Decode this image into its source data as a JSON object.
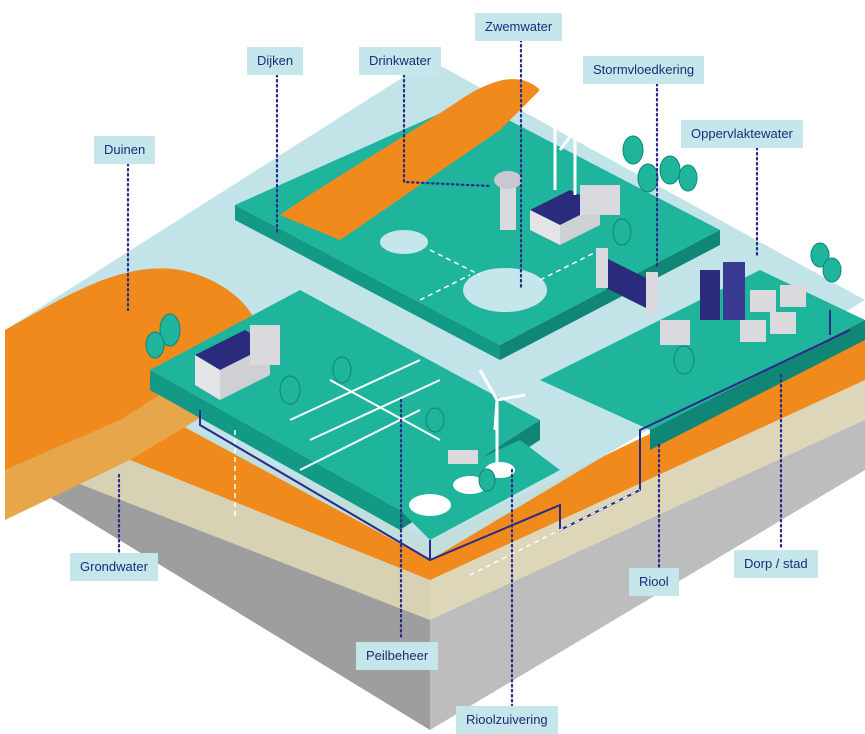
{
  "labels": {
    "zwemwater": "Zwemwater",
    "dijken": "Dijken",
    "drinkwater": "Drinkwater",
    "stormvloedkering": "Stormvloedkering",
    "duinen": "Duinen",
    "oppervlaktewater": "Oppervlaktewater",
    "grondwater": "Grondwater",
    "dorp_stad": "Dorp / stad",
    "riool": "Riool",
    "peilbeheer": "Peilbeheer",
    "rioolzuivering": "Rioolzuivering"
  },
  "colors": {
    "label_bg": "#c5e6ea",
    "label_text": "#1f2a7a",
    "water": "#bfe3e8",
    "land": "#1fb49c",
    "land_dark": "#139a86",
    "sand": "#f08a1c",
    "sand_light": "#e8a64a",
    "soil_beige": "#d8d2b4",
    "bedrock": "#a8a8a8",
    "sewer": "#2a2a8a",
    "building": "#d9d9de",
    "roof": "#2b2b7e"
  }
}
